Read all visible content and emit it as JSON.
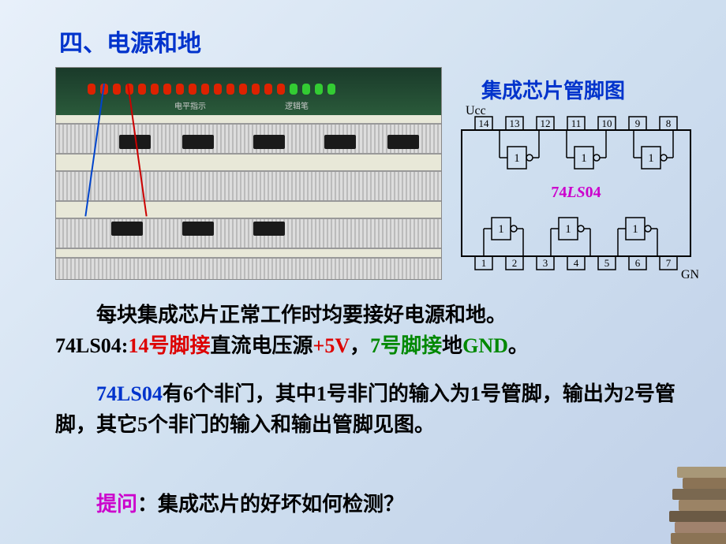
{
  "slide": {
    "title": "四、电源和地",
    "diagram_title": "集成芯片管脚图"
  },
  "photo": {
    "label_left": "电平指示",
    "label_right": "逻辑笔",
    "led_colors_red": "#dd2200",
    "led_colors_green": "#33cc33",
    "red_count": 16,
    "green_count": 4,
    "chip_count": 5
  },
  "ic_diagram": {
    "part_number_prefix": "74",
    "part_number_mid": "LS",
    "part_number_suffix": "04",
    "ucc_label": "Ucc",
    "gnd_label": "GND",
    "top_pins": [
      "14",
      "13",
      "12",
      "11",
      "10",
      "9",
      "8"
    ],
    "bottom_pins": [
      "1",
      "2",
      "3",
      "4",
      "5",
      "6",
      "7"
    ],
    "gate_label": "1",
    "gate_count": 6,
    "outline_color": "#000000",
    "part_color": "#cc00cc"
  },
  "text": {
    "p1_indent": "　　",
    "p1_a": "每块集成芯片正常工作时均要接好电源和地。",
    "p1_b": "74LS04:",
    "p1_c": "14号脚接",
    "p1_d": "直流电压源",
    "p1_e": "+5V",
    "p1_f": "，",
    "p1_g": "7号脚接",
    "p1_h": "地",
    "p1_i": "GND",
    "p1_j": "。",
    "p2_indent": "　　",
    "p2_a": "74LS04",
    "p2_b": "有6个非门，其中1号非门的输入为1号管脚，输出为2号管脚，其它5个非门的输入和输出管脚见图。",
    "p3_indent": "　　",
    "p3_a": "提问",
    "p3_b": "：集成芯片的好坏如何检测？",
    "color_red": "#dd0000",
    "color_green": "#008800",
    "color_blue": "#0033cc",
    "color_magenta": "#cc00cc"
  }
}
